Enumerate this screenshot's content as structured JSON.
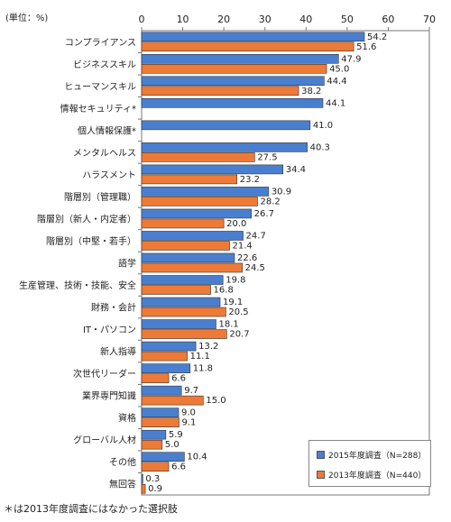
{
  "chart_data": {
    "type": "bar",
    "orientation": "horizontal",
    "unit_label": "(単位：%)",
    "xlim": [
      0,
      70
    ],
    "xticks": [
      0,
      10,
      20,
      30,
      40,
      50,
      60,
      70
    ],
    "categories": [
      "コンプライアンス",
      "ビジネススキル",
      "ヒューマンスキル",
      "情報セキュリティ*",
      "個人情報保護*",
      "メンタルヘルス",
      "ハラスメント",
      "階層別（管理職）",
      "階層別（新人・内定者）",
      "階層別（中堅・若手）",
      "語学",
      "生産管理、技術・技能、安全",
      "財務・会計",
      "IT・パソコン",
      "新人指導",
      "次世代リーダー",
      "業界専門知識",
      "資格",
      "グローバル人材",
      "その他",
      "無回答"
    ],
    "series": [
      {
        "name": "2015年度調査（N=288）",
        "color": "#4a7fd0",
        "values": [
          54.2,
          47.9,
          44.4,
          44.1,
          41.0,
          40.3,
          34.4,
          30.9,
          26.7,
          24.7,
          22.6,
          19.8,
          19.1,
          18.1,
          13.2,
          11.8,
          9.7,
          9.0,
          5.9,
          10.4,
          0.3
        ]
      },
      {
        "name": "2013年度調査（N=440）",
        "color": "#ee7a38",
        "values": [
          51.6,
          45.0,
          38.2,
          null,
          null,
          27.5,
          23.2,
          28.2,
          20.0,
          21.4,
          24.5,
          16.8,
          20.5,
          20.7,
          11.1,
          6.6,
          15.0,
          9.1,
          5.0,
          6.6,
          0.9
        ]
      }
    ],
    "legend_position": "bottom-right",
    "footnote": "＊は2013年度調査にはなかった選択肢"
  }
}
